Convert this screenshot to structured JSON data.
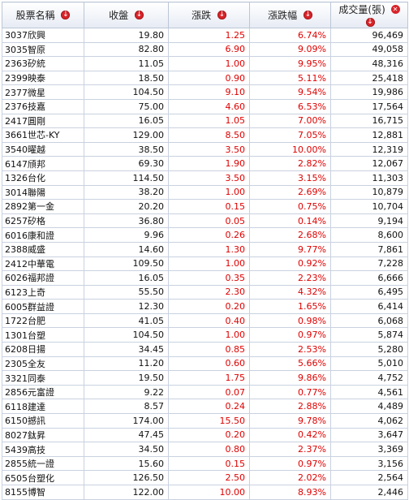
{
  "header": {
    "name": "股票名稱",
    "close": "收盤",
    "change": "漲跌",
    "change_pct": "漲跌幅",
    "volume": "成交量(張)"
  },
  "rows": [
    {
      "name": "3037欣興",
      "close": "19.80",
      "change": "1.25",
      "pct": "6.74%",
      "volume": "96,469"
    },
    {
      "name": "3035智原",
      "close": "82.80",
      "change": "6.90",
      "pct": "9.09%",
      "volume": "49,058"
    },
    {
      "name": "2363矽統",
      "close": "11.05",
      "change": "1.00",
      "pct": "9.95%",
      "volume": "48,316"
    },
    {
      "name": "2399映泰",
      "close": "18.50",
      "change": "0.90",
      "pct": "5.11%",
      "volume": "25,418"
    },
    {
      "name": "2377微星",
      "close": "104.50",
      "change": "9.10",
      "pct": "9.54%",
      "volume": "19,986"
    },
    {
      "name": "2376技嘉",
      "close": "75.00",
      "change": "4.60",
      "pct": "6.53%",
      "volume": "17,564"
    },
    {
      "name": "2417圓剛",
      "close": "16.05",
      "change": "1.05",
      "pct": "7.00%",
      "volume": "16,715"
    },
    {
      "name": "3661世芯-KY",
      "close": "129.00",
      "change": "8.50",
      "pct": "7.05%",
      "volume": "12,881"
    },
    {
      "name": "3540曜越",
      "close": "38.50",
      "change": "3.50",
      "pct": "10.00%",
      "volume": "12,319"
    },
    {
      "name": "6147頎邦",
      "close": "69.30",
      "change": "1.90",
      "pct": "2.82%",
      "volume": "12,067"
    },
    {
      "name": "1326台化",
      "close": "114.50",
      "change": "3.50",
      "pct": "3.15%",
      "volume": "11,303"
    },
    {
      "name": "3014聯陽",
      "close": "38.20",
      "change": "1.00",
      "pct": "2.69%",
      "volume": "10,879"
    },
    {
      "name": "2892第一金",
      "close": "20.20",
      "change": "0.15",
      "pct": "0.75%",
      "volume": "10,704"
    },
    {
      "name": "6257矽格",
      "close": "36.80",
      "change": "0.05",
      "pct": "0.14%",
      "volume": "9,194"
    },
    {
      "name": "6016康和證",
      "close": "9.96",
      "change": "0.26",
      "pct": "2.68%",
      "volume": "8,600"
    },
    {
      "name": "2388威盛",
      "close": "14.60",
      "change": "1.30",
      "pct": "9.77%",
      "volume": "7,861"
    },
    {
      "name": "2412中華電",
      "close": "109.50",
      "change": "1.00",
      "pct": "0.92%",
      "volume": "7,228"
    },
    {
      "name": "6026福邦證",
      "close": "16.05",
      "change": "0.35",
      "pct": "2.23%",
      "volume": "6,666"
    },
    {
      "name": "6123上奇",
      "close": "55.50",
      "change": "2.30",
      "pct": "4.32%",
      "volume": "6,495"
    },
    {
      "name": "6005群益證",
      "close": "12.30",
      "change": "0.20",
      "pct": "1.65%",
      "volume": "6,414"
    },
    {
      "name": "1722台肥",
      "close": "41.05",
      "change": "0.40",
      "pct": "0.98%",
      "volume": "6,068"
    },
    {
      "name": "1301台塑",
      "close": "104.50",
      "change": "1.00",
      "pct": "0.97%",
      "volume": "5,874"
    },
    {
      "name": "6208日揚",
      "close": "34.45",
      "change": "0.85",
      "pct": "2.53%",
      "volume": "5,280"
    },
    {
      "name": "2305全友",
      "close": "11.20",
      "change": "0.60",
      "pct": "5.66%",
      "volume": "5,010"
    },
    {
      "name": "3321同泰",
      "close": "19.50",
      "change": "1.75",
      "pct": "9.86%",
      "volume": "4,752"
    },
    {
      "name": "2856元富證",
      "close": "9.22",
      "change": "0.07",
      "pct": "0.77%",
      "volume": "4,561"
    },
    {
      "name": "6118建達",
      "close": "8.57",
      "change": "0.24",
      "pct": "2.88%",
      "volume": "4,489"
    },
    {
      "name": "6150撼訊",
      "close": "174.00",
      "change": "15.50",
      "pct": "9.78%",
      "volume": "4,062"
    },
    {
      "name": "8027鈦昇",
      "close": "47.45",
      "change": "0.20",
      "pct": "0.42%",
      "volume": "3,647"
    },
    {
      "name": "5439高技",
      "close": "34.50",
      "change": "0.80",
      "pct": "2.37%",
      "volume": "3,369"
    },
    {
      "name": "2855統一證",
      "close": "15.60",
      "change": "0.15",
      "pct": "0.97%",
      "volume": "3,156"
    },
    {
      "name": "6505台塑化",
      "close": "126.50",
      "change": "2.50",
      "pct": "2.02%",
      "volume": "2,564"
    },
    {
      "name": "8155博智",
      "close": "122.00",
      "change": "10.00",
      "pct": "8.93%",
      "volume": "2,446"
    }
  ],
  "colors": {
    "up": "#e00000",
    "icon": "#d8242a"
  },
  "icons": {
    "sort": "sort-down-icon",
    "close": "close-icon"
  }
}
